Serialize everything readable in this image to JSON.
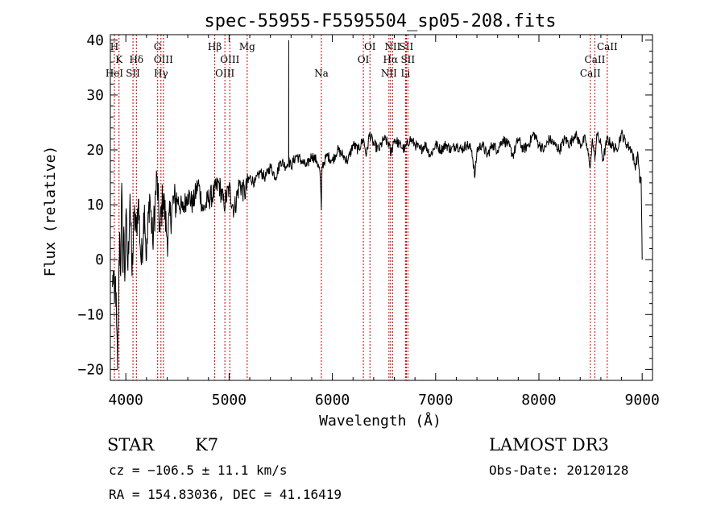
{
  "chart_data": {
    "type": "line",
    "title": "spec-55955-F5595504_sp05-208.fits",
    "xlabel": "Wavelength (Å)",
    "ylabel": "Flux (relative)",
    "xlim": [
      3850,
      9100
    ],
    "ylim": [
      -22,
      41
    ],
    "xticks": [
      4000,
      5000,
      6000,
      7000,
      8000,
      9000
    ],
    "yticks": [
      -20,
      -10,
      0,
      10,
      20,
      30,
      40
    ],
    "series": [
      {
        "name": "flux",
        "x": [
          3870,
          3880,
          3890,
          3900,
          3910,
          3920,
          3930,
          3940,
          3950,
          3960,
          3970,
          3980,
          3990,
          4000,
          4020,
          4040,
          4060,
          4080,
          4100,
          4120,
          4150,
          4180,
          4200,
          4230,
          4260,
          4300,
          4330,
          4360,
          4400,
          4450,
          4500,
          4550,
          4600,
          4650,
          4700,
          4750,
          4800,
          4850,
          4900,
          4950,
          5000,
          5050,
          5100,
          5150,
          5200,
          5250,
          5300,
          5350,
          5400,
          5450,
          5500,
          5550,
          5576,
          5577,
          5578,
          5600,
          5650,
          5700,
          5750,
          5800,
          5850,
          5880,
          5893,
          5900,
          5950,
          6000,
          6050,
          6100,
          6150,
          6200,
          6250,
          6300,
          6330,
          6360,
          6400,
          6450,
          6500,
          6550,
          6563,
          6600,
          6650,
          6700,
          6750,
          6800,
          6850,
          6900,
          6950,
          7000,
          7050,
          7100,
          7150,
          7200,
          7250,
          7300,
          7350,
          7380,
          7400,
          7450,
          7500,
          7550,
          7600,
          7650,
          7700,
          7750,
          7800,
          7850,
          7900,
          7950,
          8000,
          8050,
          8100,
          8150,
          8200,
          8250,
          8300,
          8350,
          8400,
          8450,
          8498,
          8520,
          8542,
          8560,
          8600,
          8620,
          8662,
          8700,
          8750,
          8800,
          8850,
          8900,
          8930,
          8960,
          8980,
          8990,
          9000
        ],
        "y": [
          -5,
          -2,
          -8,
          -3,
          -12,
          -20,
          -6,
          5,
          -3,
          14,
          -2,
          6,
          -4,
          8,
          -2,
          12,
          -3,
          8,
          5,
          11,
          -1,
          10,
          0,
          12,
          3,
          15,
          5,
          12,
          4,
          10,
          11,
          9,
          12,
          10,
          14,
          9,
          11,
          12,
          14,
          10,
          13,
          9,
          14,
          12,
          15,
          14,
          16,
          15,
          17,
          15,
          18,
          17,
          18,
          40,
          18,
          17,
          19,
          18,
          17,
          19,
          18,
          16,
          9,
          17,
          19,
          18,
          20,
          19,
          18,
          21,
          20,
          22,
          19,
          23,
          21,
          20,
          22,
          21,
          19,
          22,
          21,
          20,
          22,
          21,
          20,
          21,
          19,
          21,
          20,
          21,
          20,
          21,
          20,
          21,
          20,
          15,
          20,
          21,
          19,
          21,
          20,
          22,
          21,
          19,
          22,
          20,
          21,
          23,
          21,
          20,
          22,
          21,
          20,
          22,
          21,
          23,
          21,
          22,
          17,
          22,
          18,
          23,
          21,
          18,
          22,
          21,
          20,
          23,
          21,
          20,
          17,
          19,
          14,
          15,
          0
        ],
        "color": "#000000"
      }
    ],
    "line_markers": [
      {
        "label": "H",
        "wavelength": 3889,
        "row": 0
      },
      {
        "label": "K",
        "wavelength": 3934,
        "row": 1
      },
      {
        "label": "HeI",
        "wavelength": 3889,
        "row": 2
      },
      {
        "label": "SII",
        "wavelength": 4069,
        "row": 2
      },
      {
        "label": "Hδ",
        "wavelength": 4102,
        "row": 1
      },
      {
        "label": "G",
        "wavelength": 4308,
        "row": 0
      },
      {
        "label": "OIII",
        "wavelength": 4364,
        "row": 1
      },
      {
        "label": "Hγ",
        "wavelength": 4340,
        "row": 2
      },
      {
        "label": "Hβ",
        "wavelength": 4861,
        "row": 0
      },
      {
        "label": "OIII",
        "wavelength": 5007,
        "row": 1
      },
      {
        "label": "OIII",
        "wavelength": 4959,
        "row": 2
      },
      {
        "label": "Mg",
        "wavelength": 5175,
        "row": 0
      },
      {
        "label": "Na",
        "wavelength": 5893,
        "row": 2
      },
      {
        "label": "OI",
        "wavelength": 6364,
        "row": 0
      },
      {
        "label": "OI",
        "wavelength": 6300,
        "row": 1
      },
      {
        "label": "NII",
        "wavelength": 6583,
        "row": 0
      },
      {
        "label": "SII",
        "wavelength": 6716,
        "row": 0
      },
      {
        "label": "Hα",
        "wavelength": 6563,
        "row": 1
      },
      {
        "label": "SII",
        "wavelength": 6731,
        "row": 1
      },
      {
        "label": "NII",
        "wavelength": 6548,
        "row": 2
      },
      {
        "label": "Li",
        "wavelength": 6708,
        "row": 2
      },
      {
        "label": "CaII",
        "wavelength": 8662,
        "row": 0
      },
      {
        "label": "CaII",
        "wavelength": 8542,
        "row": 1
      },
      {
        "label": "CaII",
        "wavelength": 8498,
        "row": 2
      }
    ],
    "marker_color": "#cc0000"
  },
  "info": {
    "object_class": "STAR",
    "subclass": "K7",
    "survey": "LAMOST DR3",
    "redshift_text": "cz = −106.5 ± 11.1 km/s",
    "obs_date": "Obs-Date: 20120128",
    "coords": "RA = 154.83036, DEC =  41.16419"
  }
}
